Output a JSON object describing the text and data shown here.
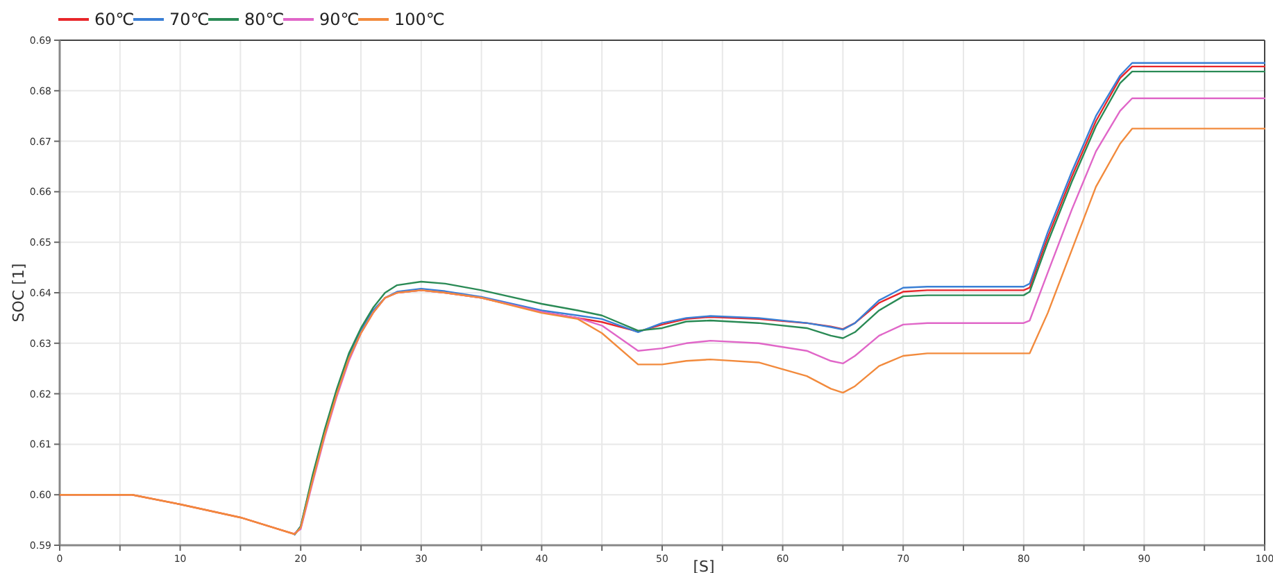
{
  "chart_data": {
    "type": "line",
    "xlabel": "[S]",
    "ylabel": "SOC [1]",
    "legend": "top left",
    "grid": true,
    "marker": "none",
    "line_style": "solid",
    "xlim": [
      0,
      100
    ],
    "ylim": [
      0.59,
      0.69
    ],
    "xticks": [
      0,
      {
        "value": 5,
        "label": null
      },
      10,
      {
        "value": 15,
        "label": null
      },
      20,
      {
        "value": 25,
        "label": null
      },
      30,
      {
        "value": 35,
        "label": null
      },
      40,
      {
        "value": 45,
        "label": null
      },
      50,
      {
        "value": 55,
        "label": null
      },
      60,
      {
        "value": 65,
        "label": null
      },
      70,
      {
        "value": 75,
        "label": null
      },
      80,
      {
        "value": 85,
        "label": null
      },
      90,
      {
        "value": 95,
        "label": null
      },
      100
    ],
    "yticks": [
      {
        "value": 0.59,
        "label": "0.59"
      },
      {
        "value": 0.6,
        "label": "0.60"
      },
      {
        "value": 0.61,
        "label": "0.61"
      },
      {
        "value": 0.62,
        "label": "0.62"
      },
      {
        "value": 0.63,
        "label": "0.63"
      },
      {
        "value": 0.64,
        "label": "0.64"
      },
      {
        "value": 0.65,
        "label": "0.65"
      },
      {
        "value": 0.66,
        "label": "0.66"
      },
      {
        "value": 0.67,
        "label": "0.67"
      },
      {
        "value": 0.68,
        "label": "0.68"
      },
      {
        "value": 0.69,
        "label": "0.69"
      }
    ],
    "x": [
      0,
      6,
      10,
      15,
      19.5,
      20,
      21,
      22,
      23,
      24,
      25,
      26,
      27,
      28,
      30,
      32,
      35,
      40,
      43,
      45,
      48,
      50,
      52,
      54,
      58,
      62,
      64,
      65,
      66,
      68,
      70,
      72,
      75,
      80,
      80.5,
      82,
      84,
      86,
      88,
      89,
      90,
      100
    ],
    "series": [
      {
        "name": "60℃",
        "color": "#e8262a",
        "values": [
          0.6,
          0.6,
          0.5981,
          0.5955,
          0.5922,
          0.5935,
          0.603,
          0.612,
          0.62,
          0.627,
          0.632,
          0.636,
          0.639,
          0.64,
          0.6405,
          0.64,
          0.639,
          0.6362,
          0.635,
          0.6342,
          0.6323,
          0.6337,
          0.6348,
          0.6352,
          0.6348,
          0.634,
          0.6333,
          0.6328,
          0.634,
          0.638,
          0.6402,
          0.6405,
          0.6405,
          0.6405,
          0.641,
          0.651,
          0.663,
          0.674,
          0.6825,
          0.6848,
          0.6848,
          0.6848
        ]
      },
      {
        "name": "70℃",
        "color": "#3a7fd5",
        "values": [
          null,
          null,
          null,
          null,
          0.5921,
          0.5938,
          0.6035,
          0.6125,
          0.6205,
          0.6275,
          0.6325,
          0.6365,
          0.639,
          0.6402,
          0.6408,
          0.6403,
          0.6392,
          0.6365,
          0.6355,
          0.6348,
          0.6322,
          0.634,
          0.635,
          0.6354,
          0.635,
          0.634,
          0.6332,
          0.6327,
          0.634,
          0.6385,
          0.641,
          0.6412,
          0.6412,
          0.6412,
          0.6418,
          0.652,
          0.664,
          0.675,
          0.683,
          0.6855,
          0.6855,
          0.6855
        ]
      },
      {
        "name": "80℃",
        "color": "#2a8a55",
        "values": [
          null,
          null,
          null,
          null,
          0.5922,
          0.5937,
          0.604,
          0.613,
          0.621,
          0.628,
          0.633,
          0.637,
          0.64,
          0.6415,
          0.6422,
          0.6418,
          0.6405,
          0.6378,
          0.6365,
          0.6355,
          0.6325,
          0.633,
          0.6343,
          0.6345,
          0.634,
          0.633,
          0.6315,
          0.631,
          0.6322,
          0.6365,
          0.6393,
          0.6395,
          0.6395,
          0.6395,
          0.6402,
          0.65,
          0.662,
          0.673,
          0.6815,
          0.6838,
          0.6838,
          0.6838
        ]
      },
      {
        "name": "90℃",
        "color": "#e066c8",
        "values": [
          null,
          null,
          null,
          null,
          0.5924,
          0.5932,
          0.6025,
          0.6115,
          0.6195,
          0.6265,
          0.632,
          0.636,
          0.639,
          0.64,
          0.6405,
          0.64,
          0.639,
          0.6362,
          0.635,
          0.6335,
          0.6285,
          0.629,
          0.63,
          0.6305,
          0.63,
          0.6285,
          0.6265,
          0.626,
          0.6275,
          0.6315,
          0.6337,
          0.634,
          0.634,
          0.634,
          0.6345,
          0.644,
          0.6565,
          0.668,
          0.676,
          0.6785,
          0.6785,
          0.6785
        ]
      },
      {
        "name": "100℃",
        "color": "#f28a3c",
        "values": [
          0.6,
          0.6,
          0.5981,
          0.5955,
          0.5922,
          0.5935,
          0.603,
          0.612,
          0.62,
          0.627,
          0.632,
          0.636,
          0.639,
          0.64,
          0.6405,
          0.64,
          0.639,
          0.636,
          0.6348,
          0.632,
          0.6258,
          0.6258,
          0.6265,
          0.6268,
          0.6262,
          0.6235,
          0.621,
          0.6202,
          0.6215,
          0.6255,
          0.6275,
          0.628,
          0.628,
          0.628,
          0.628,
          0.636,
          0.6485,
          0.661,
          0.6695,
          0.6725,
          0.6725,
          0.6725
        ]
      }
    ]
  }
}
